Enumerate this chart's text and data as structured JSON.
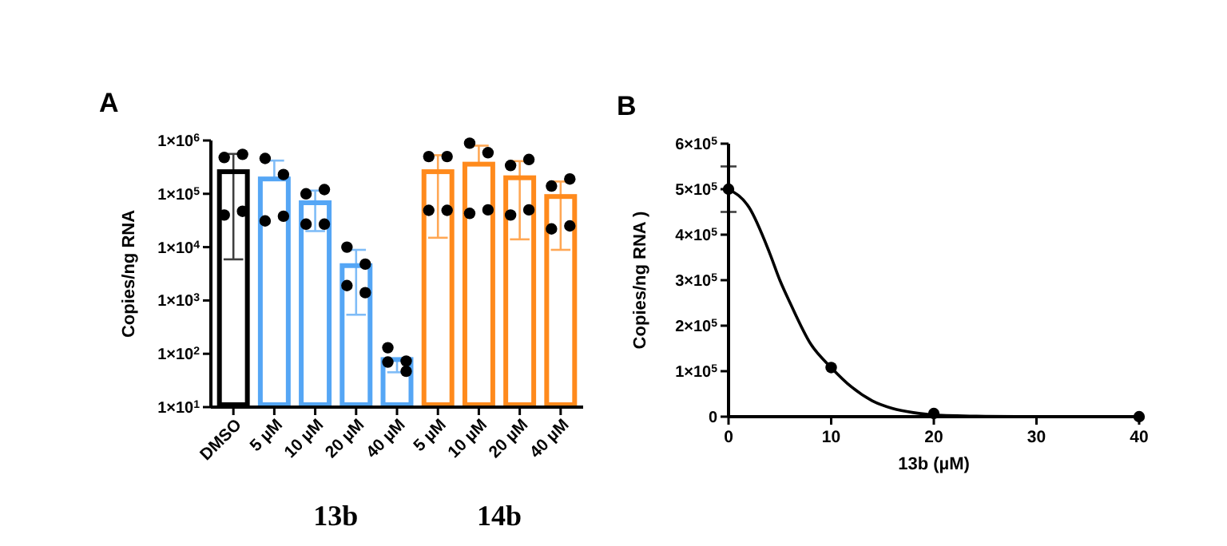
{
  "chart_data": [
    {
      "type": "bar",
      "title": "A",
      "ylabel": "Copies/ng RNA",
      "log": true,
      "categories": [
        "DMSO",
        "5 µM",
        "10 µM",
        "20 µM",
        "40 µM",
        "5 µM",
        "10 µM",
        "20 µM",
        "40 µM"
      ],
      "ylim": [
        10,
        1000000
      ],
      "yticks": [
        {
          "value": 10,
          "label": "1×10$^{1}$"
        },
        {
          "value": 100,
          "label": "1×10$^{2}$"
        },
        {
          "value": 1000,
          "label": "1×10$^{3}$"
        },
        {
          "value": 10000,
          "label": "1×10$^{4}$"
        },
        {
          "value": 100000,
          "label": "1×10$^{5}$"
        },
        {
          "value": 1000000,
          "label": "1×10$^{6}$"
        }
      ],
      "annotations": [
        "13b",
        "14b"
      ],
      "series": [
        {
          "colors": [
            "#000000",
            "#55a6f5",
            "#55a6f5",
            "#55a6f5",
            "#55a6f5",
            "#ff8a1c",
            "#ff8a1c",
            "#ff8a1c",
            "#ff8a1c"
          ],
          "values": [
            260000,
            190000,
            68000,
            4500,
            78,
            260000,
            360000,
            200000,
            89000
          ],
          "errors": [
            [
              5900,
              560000
            ],
            [
              190000,
              420000
            ],
            [
              20000,
              115000
            ],
            [
              540,
              8900
            ],
            [
              45,
              80
            ],
            [
              15000,
              530000
            ],
            [
              360000,
              800000
            ],
            [
              14000,
              410000
            ],
            [
              8900,
              170000
            ]
          ]
        },
        {
          "type": "scatter",
          "color": "#000000",
          "values": [
            480000,
            460000,
            100000,
            10000,
            130,
            500000,
            890000,
            340000,
            140000
          ]
        },
        {
          "type": "scatter",
          "color": "#000000",
          "values": [
            550000,
            230000,
            120000,
            4800,
            73,
            500000,
            590000,
            440000,
            190000
          ]
        },
        {
          "type": "scatter",
          "color": "#000000",
          "values": [
            40000,
            31000,
            27000,
            1900,
            70,
            49000,
            43000,
            40000,
            22000
          ]
        },
        {
          "type": "scatter",
          "color": "#000000",
          "values": [
            47000,
            38000,
            27000,
            1400,
            47,
            49000,
            50000,
            50000,
            25000
          ]
        }
      ],
      "marker": "circle",
      "grid": false
    },
    {
      "type": "scatter",
      "title": "B",
      "xlabel": "13b (µM)",
      "ylabel": "Copies/ng RNA )",
      "xlim": [
        0,
        40
      ],
      "xticks": [
        0,
        10,
        20,
        30,
        40
      ],
      "ylim": [
        0,
        600000
      ],
      "yticks": [
        0,
        {
          "value": 100000,
          "label": "1×10$^{5}$"
        },
        {
          "value": 200000,
          "label": "2×10$^{5}$"
        },
        {
          "value": 300000,
          "label": "3×10$^{5}$"
        },
        {
          "value": 400000,
          "label": "4×10$^{5}$"
        },
        {
          "value": 500000,
          "label": "5×10$^{5}$"
        },
        {
          "value": 600000,
          "label": "6×10$^{5}$"
        }
      ],
      "series": [
        {
          "type": "line",
          "marker": "none",
          "color": "#000000",
          "x": [
            0,
            2,
            4,
            5,
            6,
            8,
            10,
            12,
            14,
            16,
            18,
            20,
            25,
            30,
            40
          ],
          "values": [
            500000,
            460000,
            360000,
            300000,
            250000,
            160000,
            108000,
            65000,
            35000,
            18000,
            9000,
            4000,
            1000,
            0,
            0
          ]
        },
        {
          "color": "#000000",
          "x": [
            0,
            10,
            20,
            40
          ],
          "values": [
            500000,
            108000,
            7000,
            0
          ],
          "errors": [
            [
              450000,
              550000
            ],
            null,
            null,
            null
          ]
        }
      ],
      "marker": "circle",
      "grid": false
    }
  ]
}
